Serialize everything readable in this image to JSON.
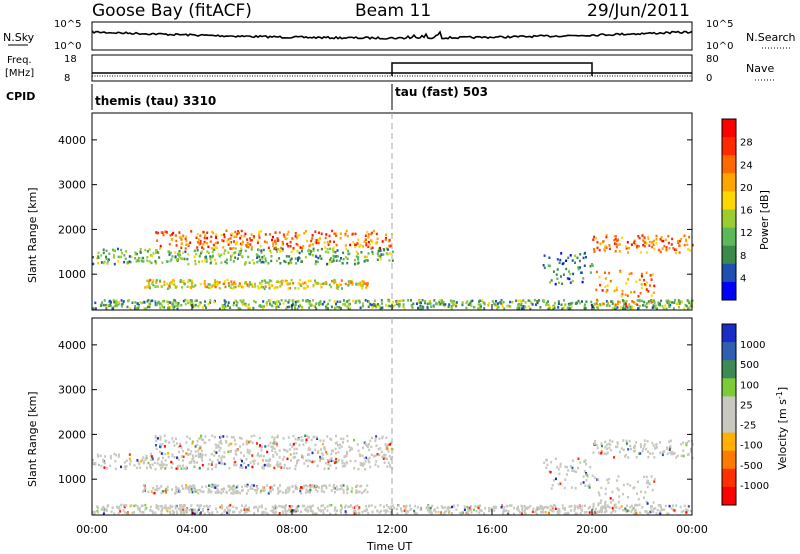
{
  "header": {
    "title": "Goose Bay (fitACF)",
    "beam": "Beam 11",
    "date": "29/Jun/2011"
  },
  "top_panel": {
    "left_label": "N.Sky",
    "right_label": "N.Search",
    "ticks_left": [
      "10^5",
      "10^0"
    ],
    "ticks_right": [
      "10^5",
      "10^0"
    ]
  },
  "freq_panel": {
    "left_label_1": "Freq.",
    "left_label_2": "[MHz]",
    "ticks_left": [
      "18",
      "8"
    ],
    "right_label": "Nave",
    "ticks_right": [
      "80",
      "0"
    ],
    "nave_step": {
      "start": "12:00",
      "end": "20:00"
    }
  },
  "cpid": {
    "label": "CPID",
    "modes": [
      {
        "text": "themis (tau) 3310",
        "start": "00:00"
      },
      {
        "text": "tau (fast) 503",
        "start": "12:00"
      }
    ]
  },
  "chart_data": [
    {
      "type": "heatmap",
      "name": "power",
      "ylabel": "Slant Range [km]",
      "y_ticks": [
        1000,
        2000,
        3000,
        4000
      ],
      "ylim": [
        200,
        4600
      ],
      "colorbar_label": "Power [dB]",
      "colorbar_ticks": [
        4,
        8,
        12,
        16,
        20,
        24,
        28
      ],
      "colorbar_colors": [
        "#0000ff",
        "#1f4fb0",
        "#3a8b4a",
        "#5db85a",
        "#9acd32",
        "#ffd700",
        "#ffa500",
        "#ff6a00",
        "#ff2a00",
        "#ff0000"
      ],
      "bands": [
        {
          "t0": 0.0,
          "t1": 12.0,
          "r0": 1250,
          "r1": 1600,
          "level": 8
        },
        {
          "t0": 2.5,
          "t1": 12.0,
          "r0": 1600,
          "r1": 2000,
          "level": 20
        },
        {
          "t0": 2.0,
          "t1": 11.0,
          "r0": 700,
          "r1": 900,
          "level": 14
        },
        {
          "t0": 0.0,
          "t1": 24.0,
          "r0": 250,
          "r1": 450,
          "level": 8
        },
        {
          "t0": 20.0,
          "t1": 24.0,
          "r0": 1500,
          "r1": 1900,
          "level": 20
        },
        {
          "t0": 20.0,
          "t1": 22.5,
          "r0": 300,
          "r1": 1100,
          "level": 22
        },
        {
          "t0": 18.0,
          "t1": 20.0,
          "r0": 800,
          "r1": 1500,
          "level": 6
        }
      ]
    },
    {
      "type": "heatmap",
      "name": "velocity",
      "ylabel": "Slant Range [km]",
      "xlabel": "Time UT",
      "x_ticks": [
        "00:00",
        "04:00",
        "08:00",
        "12:00",
        "16:00",
        "20:00",
        "00:00"
      ],
      "xlim": [
        0,
        24
      ],
      "y_ticks": [
        1000,
        2000,
        3000,
        4000
      ],
      "ylim": [
        200,
        4600
      ],
      "colorbar_label": "Velocity [m s^-1]",
      "colorbar_ticks": [
        1000,
        500,
        100,
        25,
        -25,
        -100,
        -500,
        -1000
      ],
      "colorbar_colors": [
        "#1a2cc8",
        "#2e5fb0",
        "#3d8a55",
        "#7ccc3a",
        "#c8c8c0",
        "#c8c8c0",
        "#ffb000",
        "#ff7a00",
        "#ff3000",
        "#ff0000"
      ],
      "bands": [
        {
          "t0": 0.0,
          "t1": 12.0,
          "r0": 1250,
          "r1": 1600,
          "level": 0
        },
        {
          "t0": 2.5,
          "t1": 12.0,
          "r0": 1600,
          "r1": 2000,
          "level": 0
        },
        {
          "t0": 2.0,
          "t1": 11.0,
          "r0": 700,
          "r1": 900,
          "level": 0
        },
        {
          "t0": 0.0,
          "t1": 24.0,
          "r0": 250,
          "r1": 450,
          "level": 0
        },
        {
          "t0": 20.0,
          "t1": 24.0,
          "r0": 1500,
          "r1": 1900,
          "level": 0
        },
        {
          "t0": 20.0,
          "t1": 22.5,
          "r0": 300,
          "r1": 1100,
          "level": 0
        },
        {
          "t0": 18.0,
          "t1": 20.0,
          "r0": 800,
          "r1": 1500,
          "level": 0
        }
      ]
    }
  ]
}
